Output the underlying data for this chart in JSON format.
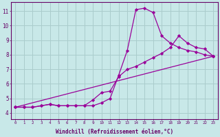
{
  "xlabel": "Windchill (Refroidissement éolien,°C)",
  "bg_color": "#c8e8e8",
  "line_color": "#990099",
  "grid_color": "#aacccc",
  "axis_color": "#660066",
  "x_ticks": [
    0,
    1,
    2,
    3,
    4,
    5,
    6,
    7,
    8,
    9,
    10,
    11,
    12,
    13,
    14,
    15,
    16,
    17,
    18,
    19,
    20,
    21,
    22,
    23
  ],
  "ylim": [
    3.6,
    11.6
  ],
  "xlim": [
    -0.5,
    23.5
  ],
  "yticks": [
    4,
    5,
    6,
    7,
    8,
    9,
    10,
    11
  ],
  "series": [
    {
      "x": [
        0,
        1,
        2,
        3,
        4,
        5,
        6,
        7,
        8,
        9,
        10,
        11,
        12,
        13,
        14,
        15,
        16,
        17,
        18,
        19,
        20,
        21,
        22,
        23
      ],
      "y": [
        4.4,
        4.4,
        4.4,
        4.5,
        4.6,
        4.5,
        4.5,
        4.5,
        4.5,
        4.5,
        4.7,
        5.0,
        6.6,
        8.3,
        11.1,
        11.2,
        10.9,
        9.3,
        8.8,
        8.5,
        8.3,
        8.2,
        8.0,
        7.9
      ]
    },
    {
      "x": [
        0,
        1,
        2,
        3,
        4,
        5,
        6,
        7,
        8,
        9,
        10,
        11,
        12,
        13,
        14,
        15,
        16,
        17,
        18,
        19,
        20,
        21,
        22,
        23
      ],
      "y": [
        4.4,
        4.4,
        4.4,
        4.5,
        4.6,
        4.5,
        4.5,
        4.5,
        4.5,
        4.9,
        5.4,
        5.5,
        6.5,
        7.0,
        7.2,
        7.5,
        7.8,
        8.1,
        8.5,
        9.3,
        8.8,
        8.5,
        8.4,
        7.9
      ]
    },
    {
      "x": [
        0,
        23
      ],
      "y": [
        4.4,
        7.9
      ]
    }
  ]
}
